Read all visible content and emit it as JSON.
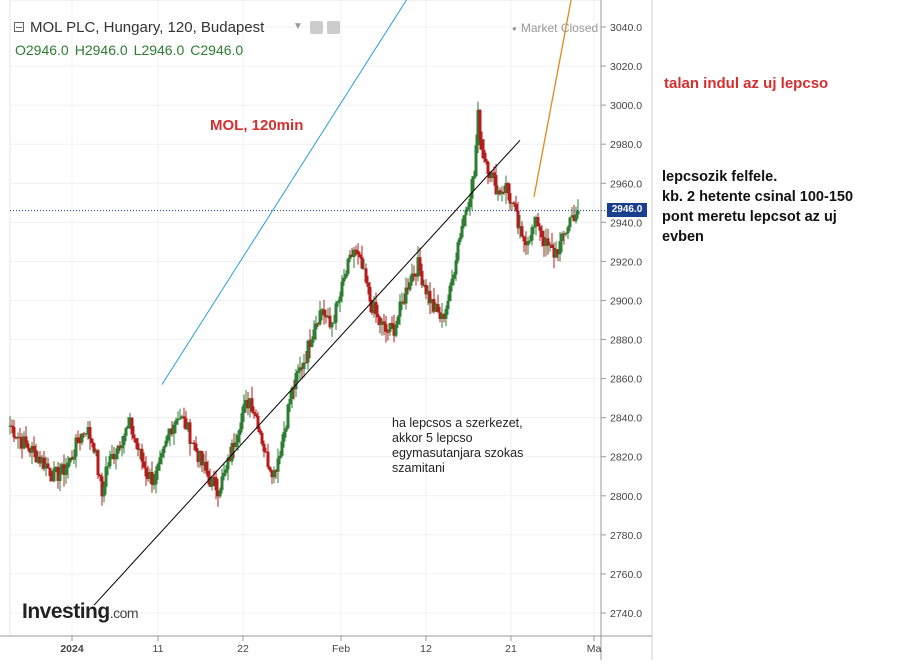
{
  "header": {
    "title": "MOL PLC, Hungary, 120, Budapest",
    "market_status": "Market Closed",
    "ohlc": {
      "o": "O2946.0",
      "h": "H2946.0",
      "l": "L2946.0",
      "c": "C2946.0"
    }
  },
  "annotations": {
    "chart_label": "MOL, 120min",
    "top_right_note": "talan indul az uj lepcso",
    "right_note": [
      "lepcsozik felfele.",
      "kb. 2 hetente csinal 100-150",
      "pont meretu lepcsot az uj",
      "evben"
    ],
    "middle_note": [
      "ha lepcsos a szerkezet,",
      "akkor 5 lepcso",
      "egymasutanjara szokas",
      "szamitani"
    ]
  },
  "logo": {
    "text": "Investing",
    "suffix": ".com"
  },
  "colors": {
    "up": "#2e7d32",
    "down": "#b71c1c",
    "channel_upper": "#2a9fd6",
    "channel_lower": "#000000",
    "projection": "#e08a1a",
    "price_tag": "#1a3f8f"
  },
  "chart_data": {
    "type": "candlestick",
    "y_ticks": [
      "3040.0",
      "3020.0",
      "3000.0",
      "2980.0",
      "2960.0",
      "2940.0",
      "2920.0",
      "2900.0",
      "2880.0",
      "2860.0",
      "2840.0",
      "2820.0",
      "2800.0",
      "2780.0",
      "2760.0",
      "2740.0"
    ],
    "x_ticks": [
      "2024",
      "11",
      "22",
      "Feb",
      "12",
      "21",
      "Ma"
    ],
    "ylim": [
      2730,
      3045
    ],
    "last_price": "2946.0",
    "close_path": [
      [
        0,
        2836
      ],
      [
        6,
        2828
      ],
      [
        12,
        2822
      ],
      [
        18,
        2816
      ],
      [
        22,
        2810
      ],
      [
        26,
        2812
      ],
      [
        30,
        2818
      ],
      [
        34,
        2828
      ],
      [
        38,
        2835
      ],
      [
        42,
        2826
      ],
      [
        46,
        2800
      ],
      [
        48,
        2814
      ],
      [
        52,
        2822
      ],
      [
        56,
        2830
      ],
      [
        60,
        2836
      ],
      [
        64,
        2824
      ],
      [
        68,
        2812
      ],
      [
        72,
        2808
      ],
      [
        76,
        2818
      ],
      [
        80,
        2834
      ],
      [
        84,
        2842
      ],
      [
        88,
        2836
      ],
      [
        92,
        2826
      ],
      [
        96,
        2816
      ],
      [
        100,
        2808
      ],
      [
        104,
        2804
      ],
      [
        108,
        2812
      ],
      [
        112,
        2828
      ],
      [
        116,
        2842
      ],
      [
        120,
        2850
      ],
      [
        124,
        2838
      ],
      [
        128,
        2820
      ],
      [
        132,
        2812
      ],
      [
        136,
        2828
      ],
      [
        140,
        2850
      ],
      [
        144,
        2862
      ],
      [
        148,
        2872
      ],
      [
        152,
        2888
      ],
      [
        156,
        2896
      ],
      [
        160,
        2886
      ],
      [
        164,
        2898
      ],
      [
        168,
        2914
      ],
      [
        172,
        2926
      ],
      [
        176,
        2916
      ],
      [
        180,
        2900
      ],
      [
        184,
        2890
      ],
      [
        188,
        2884
      ],
      [
        192,
        2886
      ],
      [
        196,
        2898
      ],
      [
        200,
        2912
      ],
      [
        204,
        2918
      ],
      [
        208,
        2906
      ],
      [
        212,
        2896
      ],
      [
        216,
        2890
      ],
      [
        220,
        2904
      ],
      [
        224,
        2930
      ],
      [
        228,
        2948
      ],
      [
        232,
        2964
      ],
      [
        234,
        2994
      ],
      [
        236,
        2978
      ],
      [
        240,
        2966
      ],
      [
        244,
        2956
      ],
      [
        248,
        2958
      ],
      [
        252,
        2946
      ],
      [
        256,
        2930
      ],
      [
        260,
        2934
      ],
      [
        264,
        2940
      ],
      [
        268,
        2928
      ],
      [
        272,
        2924
      ],
      [
        276,
        2930
      ],
      [
        280,
        2942
      ],
      [
        284,
        2946
      ]
    ],
    "trend_lines": {
      "upper_channel": [
        [
          76,
          2857
        ],
        [
          212,
          3076
        ]
      ],
      "lower_channel": [
        [
          42,
          2744
        ],
        [
          255,
          2982
        ]
      ],
      "projection": [
        [
          262,
          2953
        ],
        [
          285,
          3078
        ]
      ]
    }
  }
}
